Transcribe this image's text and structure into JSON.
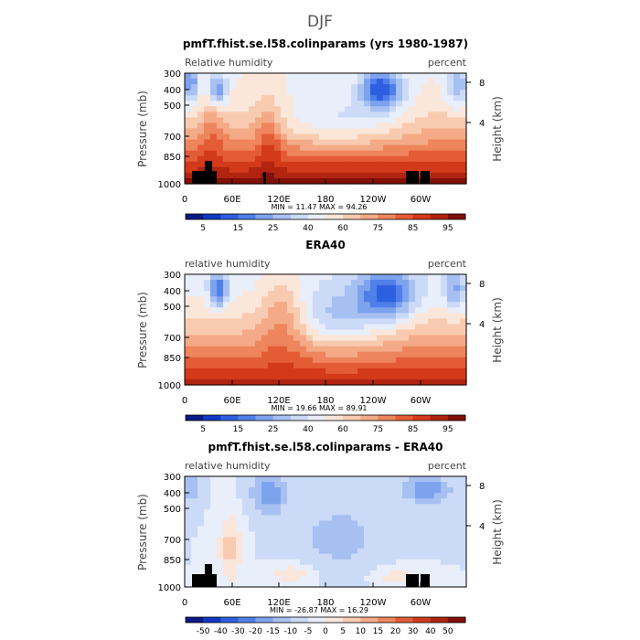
{
  "page_title": "DJF",
  "chart_data": [
    {
      "type": "heatmap",
      "title": "pmfT.fhist.se.l58.colinparams (yrs 1980-1987)",
      "left_label": "Relative humidity",
      "right_label": "percent",
      "ylabel": "Pressure (mb)",
      "y2label": "Height (km)",
      "xticks": [
        "0",
        "60E",
        "120E",
        "180",
        "120W",
        "60W"
      ],
      "yticks": [
        "300",
        "400",
        "500",
        "700",
        "850",
        "1000"
      ],
      "y2ticks": [
        "8",
        "4"
      ],
      "stats": "MIN = 11.47 MAX = 94.26",
      "min": 11.47,
      "max": 94.26,
      "colorbar": {
        "labels": [
          "5",
          "15",
          "25",
          "40",
          "60",
          "75",
          "85",
          "95"
        ],
        "colors": [
          "#0a1a86",
          "#1238c4",
          "#2e5fe0",
          "#4f7fe8",
          "#7da2ee",
          "#a7c0f2",
          "#cbdaf6",
          "#e8eefa",
          "#fbe6da",
          "#f8cbb0",
          "#f4aa86",
          "#ee855d",
          "#e45c36",
          "#d23a1a",
          "#b02410",
          "#801008"
        ]
      }
    },
    {
      "type": "heatmap",
      "title": "ERA40",
      "left_label": "relative humidity",
      "right_label": "percent",
      "ylabel": "Pressure (mb)",
      "y2label": "Height (km)",
      "xticks": [
        "0",
        "60E",
        "120E",
        "180",
        "120W",
        "60W"
      ],
      "yticks": [
        "300",
        "400",
        "500",
        "700",
        "850",
        "1000"
      ],
      "y2ticks": [
        "8",
        "4"
      ],
      "stats": "MIN = 19.66 MAX = 89.91",
      "min": 19.66,
      "max": 89.91,
      "colorbar": {
        "labels": [
          "5",
          "15",
          "25",
          "40",
          "60",
          "75",
          "85",
          "95"
        ],
        "colors": [
          "#0a1a86",
          "#1238c4",
          "#2e5fe0",
          "#4f7fe8",
          "#7da2ee",
          "#a7c0f2",
          "#cbdaf6",
          "#e8eefa",
          "#fbe6da",
          "#f8cbb0",
          "#f4aa86",
          "#ee855d",
          "#e45c36",
          "#d23a1a",
          "#b02410",
          "#801008"
        ]
      }
    },
    {
      "type": "heatmap",
      "title": "pmfT.fhist.se.l58.colinparams - ERA40",
      "left_label": "relative humidity",
      "right_label": "percent",
      "ylabel": "Pressure (mb)",
      "y2label": "Height (km)",
      "xticks": [
        "0",
        "60E",
        "120E",
        "180",
        "120W",
        "60W"
      ],
      "yticks": [
        "300",
        "400",
        "500",
        "700",
        "850",
        "1000"
      ],
      "y2ticks": [
        "8",
        "4"
      ],
      "stats": "MIN = -26.87 MAX = 16.29",
      "min": -26.87,
      "max": 16.29,
      "colorbar": {
        "labels": [
          "-50",
          "-40",
          "-30",
          "-20",
          "-15",
          "-10",
          "-5",
          "0",
          "5",
          "10",
          "15",
          "20",
          "30",
          "40",
          "50"
        ],
        "colors": [
          "#0a1a86",
          "#1238c4",
          "#2e5fe0",
          "#4f7fe8",
          "#7da2ee",
          "#a7c0f2",
          "#cbdaf6",
          "#e8eefa",
          "#fbe6da",
          "#f8cbb0",
          "#f4aa86",
          "#ee855d",
          "#e45c36",
          "#d23a1a",
          "#b02410",
          "#801008"
        ]
      }
    }
  ]
}
